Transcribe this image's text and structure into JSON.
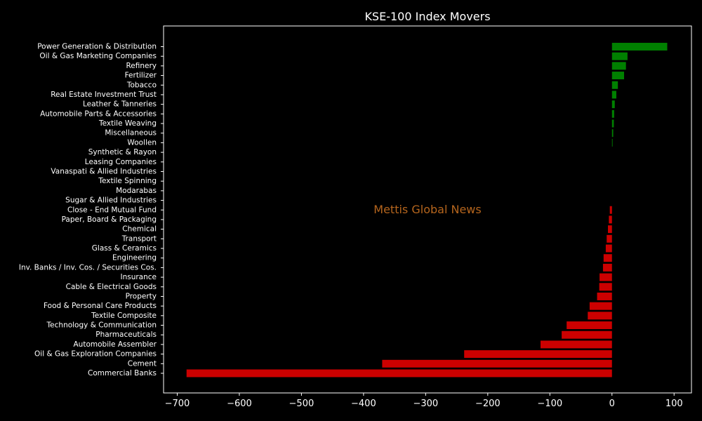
{
  "chart_data": {
    "type": "bar",
    "orientation": "horizontal",
    "title": "KSE-100 Index Movers",
    "watermark": "Mettis Global News",
    "xlabel": "",
    "ylabel": "",
    "xlim": [
      -722,
      128
    ],
    "xticks": [
      -700,
      -600,
      -500,
      -400,
      -300,
      -200,
      -100,
      0,
      100
    ],
    "xtick_labels": [
      "−700",
      "−600",
      "−500",
      "−400",
      "−300",
      "−200",
      "−100",
      "0",
      "100"
    ],
    "grid": false,
    "background": "#000000",
    "text_color": "#ffffff",
    "positive_color": "#008000",
    "negative_color": "#cc0000",
    "watermark_color": "#b5651d",
    "categories": [
      "Power Generation & Distribution",
      "Oil & Gas Marketing Companies",
      "Refinery",
      "Fertilizer",
      "Tobacco",
      "Real Estate Investment Trust",
      "Leather & Tanneries",
      "Automobile Parts & Accessories",
      "Textile Weaving",
      "Miscellaneous",
      "Woollen",
      "Synthetic & Rayon",
      "Leasing Companies",
      "Vanaspati & Allied Industries",
      "Textile Spinning",
      "Modarabas",
      "Sugar & Allied Industries",
      "Close - End Mutual Fund",
      "Paper, Board & Packaging",
      "Chemical",
      "Transport",
      "Glass & Ceramics",
      "Engineering",
      "Inv. Banks / Inv. Cos. / Securities Cos.",
      "Insurance",
      "Cable & Electrical Goods",
      "Property",
      "Food & Personal Care Products",
      "Textile Composite",
      "Technology & Communication",
      "Pharmaceuticals",
      "Automobile Assembler",
      "Oil & Gas Exploration Companies",
      "Cement",
      "Commercial Banks"
    ],
    "values": [
      89,
      25,
      22.5,
      19.5,
      9.5,
      7,
      4.5,
      3.5,
      3,
      2,
      1,
      0,
      0,
      0,
      0,
      0,
      0,
      -3.5,
      -5,
      -6.5,
      -8.5,
      -10,
      -13.5,
      -14.5,
      -20,
      -20.5,
      -24,
      -36,
      -39,
      -73,
      -81,
      -115,
      -238,
      -370,
      -685
    ]
  }
}
